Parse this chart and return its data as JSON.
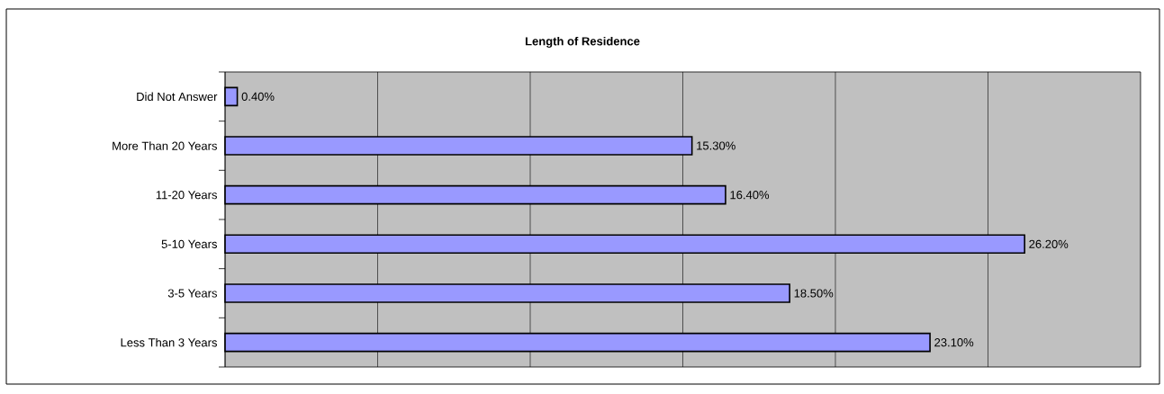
{
  "chart_data": {
    "type": "bar",
    "orientation": "horizontal",
    "title": "Length of Residence",
    "categories": [
      "Did Not Answer",
      "More Than 20 Years",
      "11-20 Years",
      "5-10 Years",
      "3-5 Years",
      "Less Than 3 Years"
    ],
    "values": [
      0.4,
      15.3,
      16.4,
      26.2,
      18.5,
      23.1
    ],
    "value_labels": [
      "0.40%",
      "15.30%",
      "16.40%",
      "26.20%",
      "18.50%",
      "23.10%"
    ],
    "color": "#9999ff",
    "xlim": [
      0,
      30
    ],
    "xticks": [
      {
        "value": 0,
        "label": null
      },
      {
        "value": 5,
        "label": null
      },
      {
        "value": 10,
        "label": null
      },
      {
        "value": 15,
        "label": null
      },
      {
        "value": 20,
        "label": null
      },
      {
        "value": 25,
        "label": null
      }
    ],
    "grid": "x",
    "tick_labels": "y"
  }
}
